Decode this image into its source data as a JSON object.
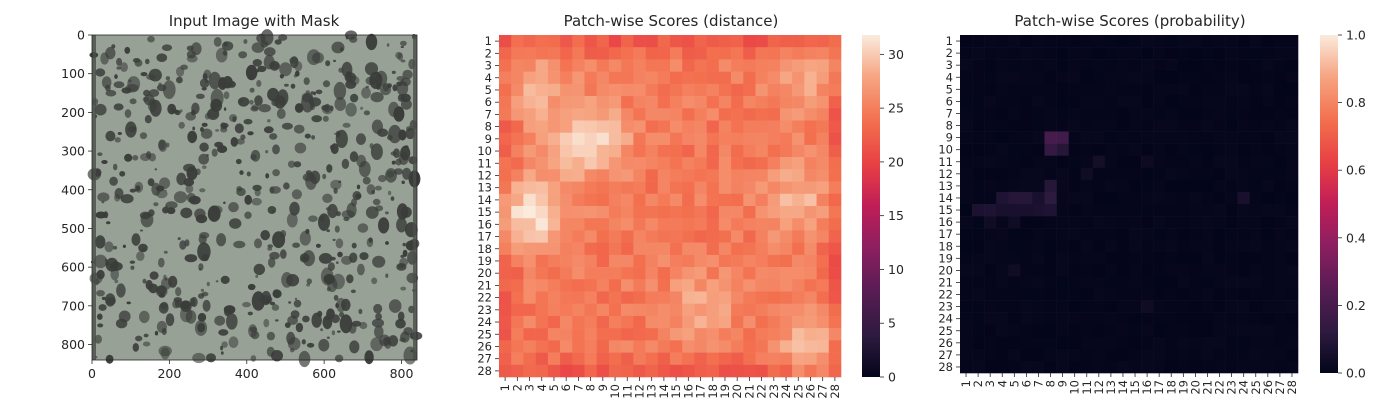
{
  "chart_data": [
    {
      "type": "image",
      "title": "Input Image with Mask",
      "x_ticks": [
        "0",
        "200",
        "400",
        "600",
        "800"
      ],
      "x_tick_values": [
        0,
        200,
        400,
        600,
        800
      ],
      "y_ticks": [
        "0",
        "100",
        "200",
        "300",
        "400",
        "500",
        "600",
        "700",
        "800"
      ],
      "y_tick_values": [
        0,
        100,
        200,
        300,
        400,
        500,
        600,
        700,
        800
      ],
      "xlim": [
        0,
        840
      ],
      "ylim": [
        0,
        840
      ],
      "image_description_colors": {
        "background": "#98a196",
        "spots": "#3a3d3a"
      }
    },
    {
      "type": "heatmap",
      "title": "Patch-wise Scores (distance)",
      "x_ticks": [
        "1",
        "2",
        "3",
        "4",
        "5",
        "6",
        "7",
        "8",
        "9",
        "10",
        "11",
        "12",
        "13",
        "14",
        "15",
        "16",
        "17",
        "18",
        "19",
        "20",
        "21",
        "22",
        "23",
        "24",
        "25",
        "26",
        "27",
        "28"
      ],
      "y_ticks": [
        "1",
        "2",
        "3",
        "4",
        "5",
        "6",
        "7",
        "8",
        "9",
        "10",
        "11",
        "12",
        "13",
        "14",
        "15",
        "16",
        "17",
        "18",
        "19",
        "20",
        "21",
        "22",
        "23",
        "24",
        "25",
        "26",
        "27",
        "28"
      ],
      "colorbar_ticks": [
        "0",
        "5",
        "10",
        "15",
        "20",
        "25",
        "30"
      ],
      "colorbar_tick_values": [
        0,
        5,
        10,
        15,
        20,
        25,
        30
      ],
      "colorbar_range": [
        0,
        31.8
      ],
      "highlights": [
        {
          "row": 9,
          "col": 8,
          "value": 31
        },
        {
          "row": 15,
          "col": 3,
          "value": 31.5
        },
        {
          "row": 14,
          "col": 25,
          "value": 29
        },
        {
          "row": 26,
          "col": 26,
          "value": 29
        },
        {
          "row": 23,
          "col": 17,
          "value": 28
        },
        {
          "row": 4,
          "col": 26,
          "value": 28
        },
        {
          "row": 5,
          "col": 3,
          "value": 28
        }
      ],
      "base_value": 24.5,
      "edge_value": 22
    },
    {
      "type": "heatmap",
      "title": "Patch-wise Scores (probability)",
      "x_ticks": [
        "1",
        "2",
        "3",
        "4",
        "5",
        "6",
        "7",
        "8",
        "9",
        "10",
        "11",
        "12",
        "13",
        "14",
        "15",
        "16",
        "17",
        "18",
        "19",
        "20",
        "21",
        "22",
        "23",
        "24",
        "25",
        "26",
        "27",
        "28"
      ],
      "y_ticks": [
        "1",
        "2",
        "3",
        "4",
        "5",
        "6",
        "7",
        "8",
        "9",
        "10",
        "11",
        "12",
        "13",
        "14",
        "15",
        "16",
        "17",
        "18",
        "19",
        "20",
        "21",
        "22",
        "23",
        "24",
        "25",
        "26",
        "27",
        "28"
      ],
      "colorbar_ticks": [
        "0.0",
        "0.2",
        "0.4",
        "0.6",
        "0.8",
        "1.0"
      ],
      "colorbar_tick_values": [
        0,
        0.2,
        0.4,
        0.6,
        0.8,
        1.0
      ],
      "colorbar_range": [
        0,
        1.0
      ],
      "highlights": [
        {
          "row": 9,
          "col": 8,
          "value": 0.2
        },
        {
          "row": 9,
          "col": 9,
          "value": 0.18
        },
        {
          "row": 10,
          "col": 8,
          "value": 0.14
        },
        {
          "row": 10,
          "col": 9,
          "value": 0.1
        },
        {
          "row": 14,
          "col": 4,
          "value": 0.08
        },
        {
          "row": 14,
          "col": 5,
          "value": 0.1
        },
        {
          "row": 14,
          "col": 6,
          "value": 0.1
        },
        {
          "row": 14,
          "col": 7,
          "value": 0.06
        },
        {
          "row": 13,
          "col": 8,
          "value": 0.1
        },
        {
          "row": 14,
          "col": 8,
          "value": 0.12
        },
        {
          "row": 15,
          "col": 2,
          "value": 0.07
        },
        {
          "row": 15,
          "col": 3,
          "value": 0.08
        },
        {
          "row": 15,
          "col": 4,
          "value": 0.06
        },
        {
          "row": 15,
          "col": 5,
          "value": 0.06
        },
        {
          "row": 15,
          "col": 6,
          "value": 0.06
        },
        {
          "row": 15,
          "col": 7,
          "value": 0.07
        },
        {
          "row": 15,
          "col": 8,
          "value": 0.08
        },
        {
          "row": 16,
          "col": 3,
          "value": 0.04
        },
        {
          "row": 16,
          "col": 5,
          "value": 0.04
        },
        {
          "row": 12,
          "col": 11,
          "value": 0.04
        },
        {
          "row": 11,
          "col": 12,
          "value": 0.05
        },
        {
          "row": 14,
          "col": 24,
          "value": 0.06
        },
        {
          "row": 23,
          "col": 16,
          "value": 0.04
        },
        {
          "row": 20,
          "col": 5,
          "value": 0.04
        },
        {
          "row": 11,
          "col": 16,
          "value": 0.03
        }
      ],
      "base_value": 0.0
    }
  ]
}
